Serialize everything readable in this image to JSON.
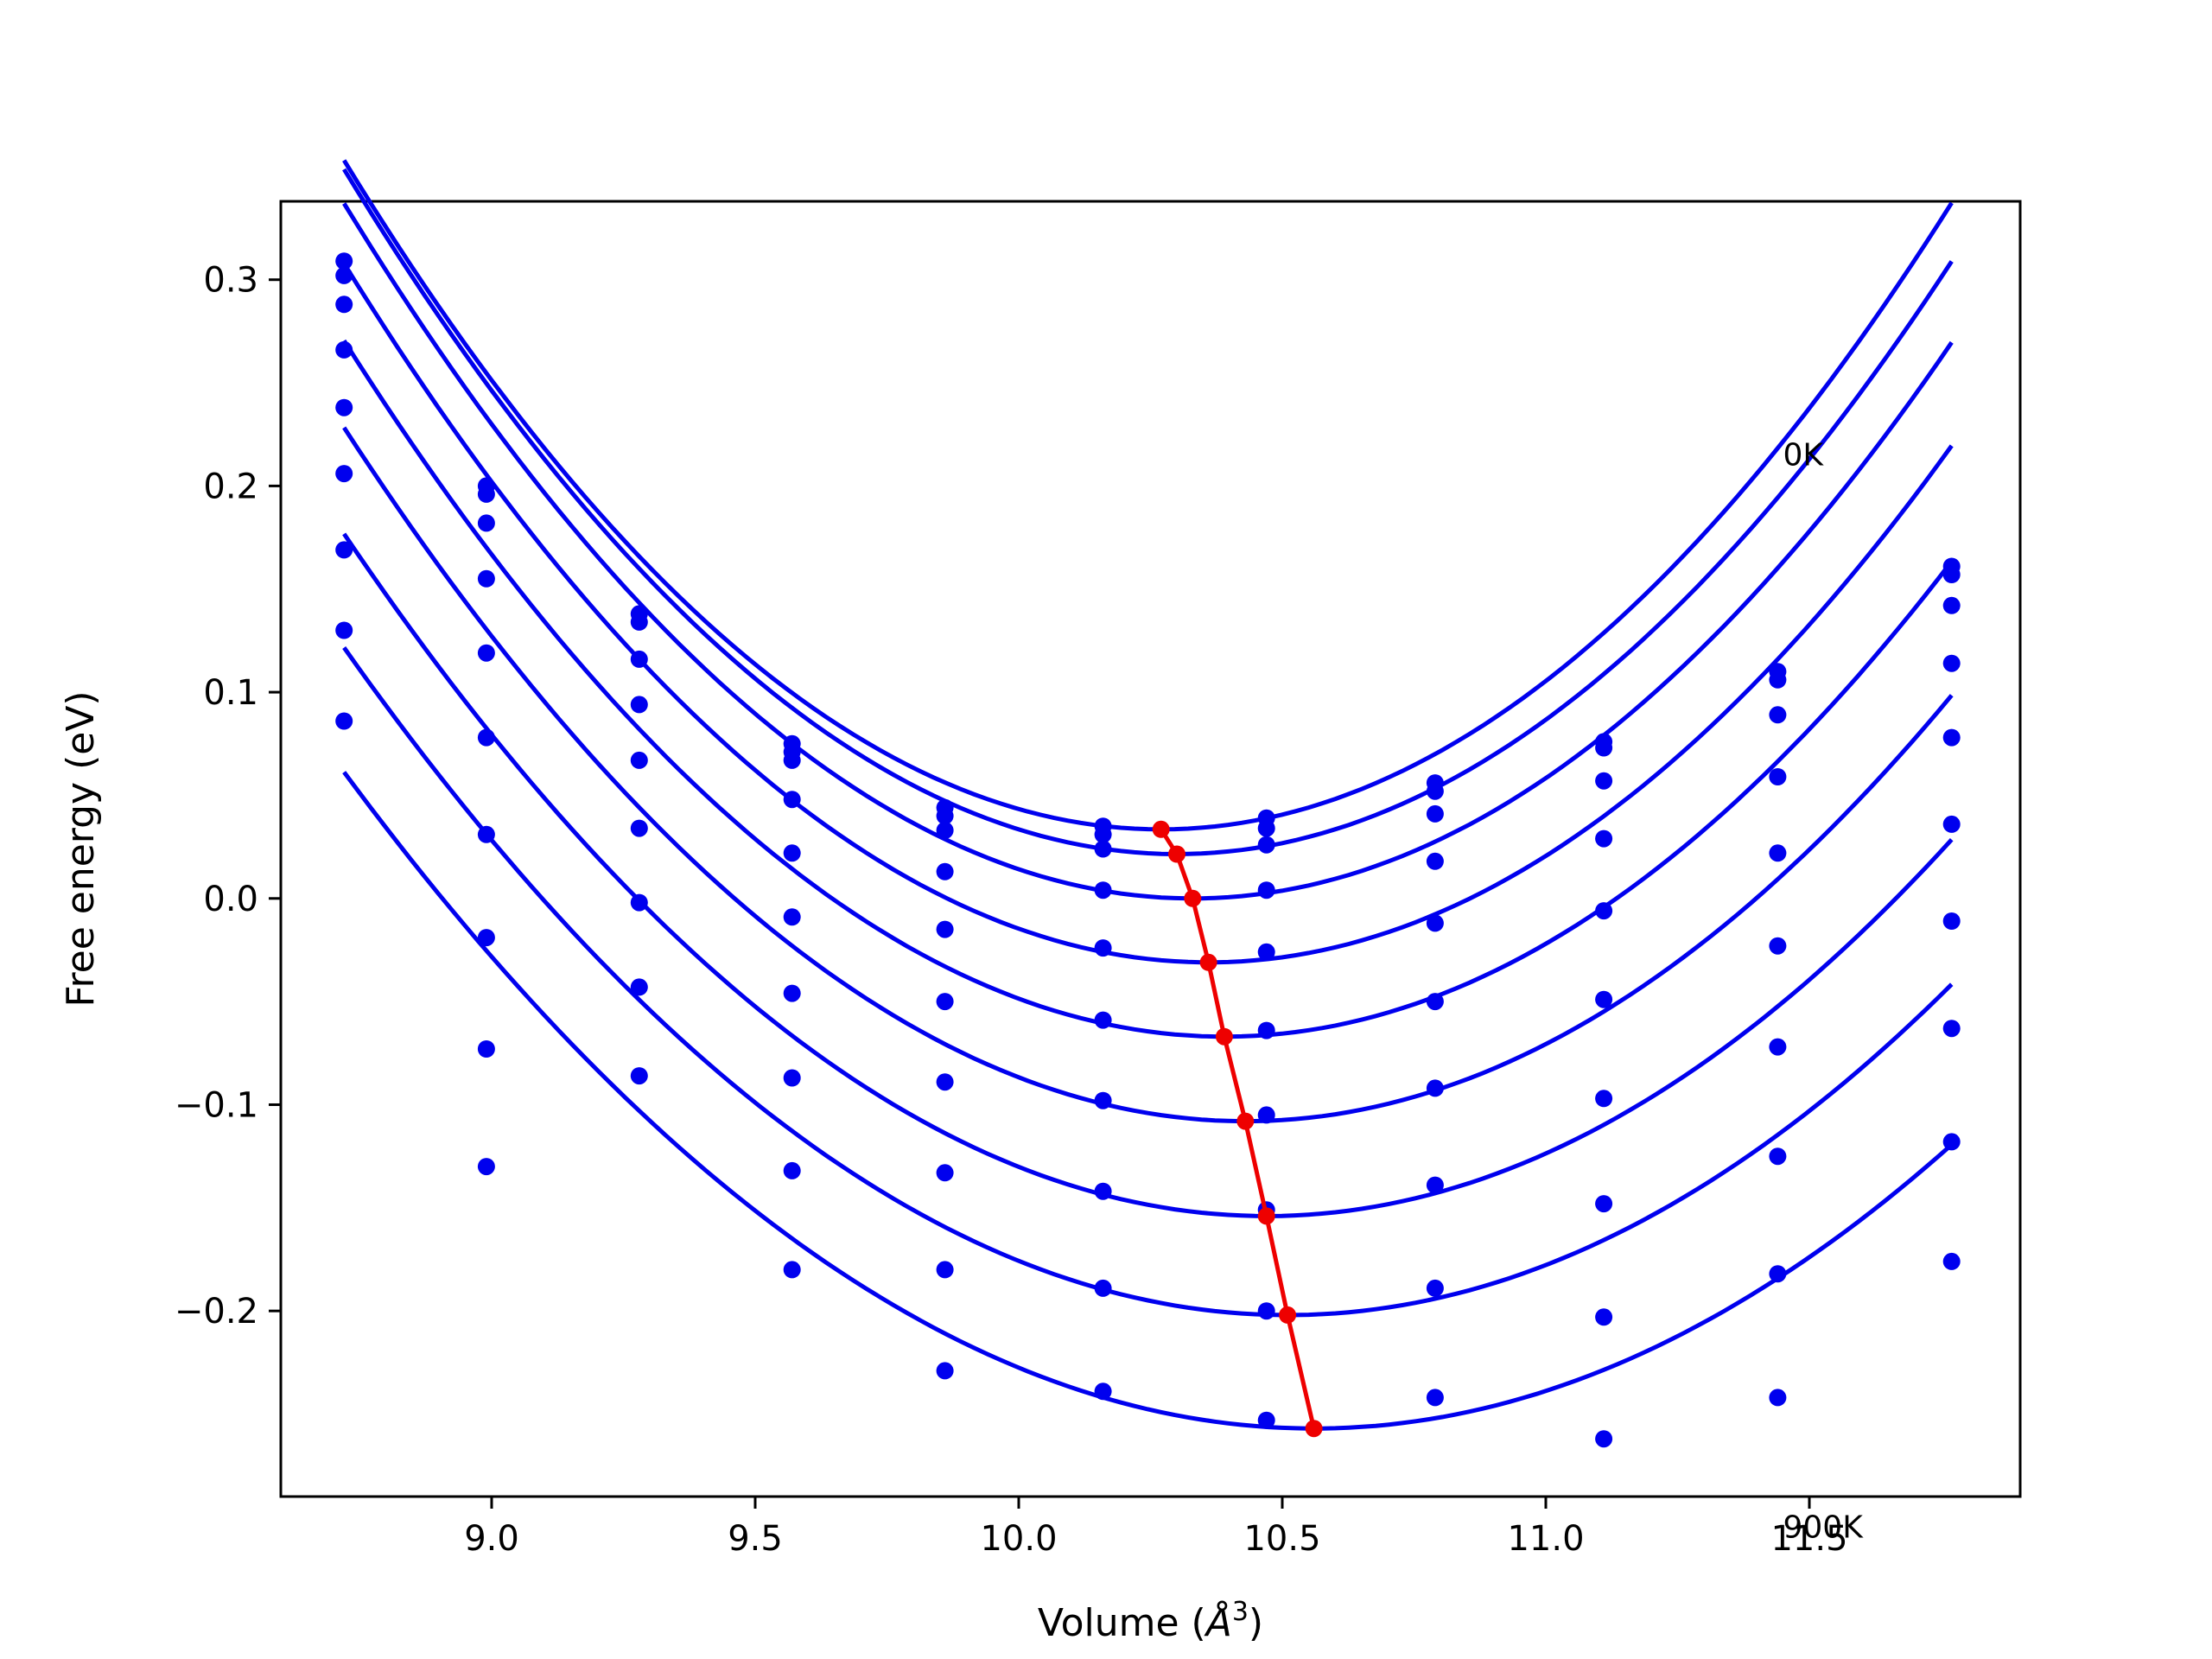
{
  "chart_data": {
    "type": "scatter",
    "xlabel": "Volume ($\\AA^3$)",
    "xlabel_text": "Volume (",
    "xlabel_unit": "Å",
    "xlabel_exp": "3",
    "xlabel_close": ")",
    "ylabel": "Free energy (eV)",
    "xlim": [
      8.6,
      11.9
    ],
    "ylim": [
      -0.29,
      0.338
    ],
    "xticks": [
      9.0,
      9.5,
      10.0,
      10.5,
      11.0,
      11.5
    ],
    "xtick_labels": [
      "9.0",
      "9.5",
      "10.0",
      "10.5",
      "11.0",
      "11.5"
    ],
    "yticks": [
      -0.2,
      -0.1,
      0.0,
      0.1,
      0.2,
      0.3
    ],
    "ytick_labels": [
      "−0.2",
      "−0.1",
      "0.0",
      "0.1",
      "0.2",
      "0.3"
    ],
    "annotations": [
      {
        "text": "0K",
        "x": 11.45,
        "y": 0.21
      },
      {
        "text": "900K",
        "x": 11.45,
        "y": -0.31
      }
    ],
    "volumes": [
      8.72,
      8.99,
      9.28,
      9.57,
      9.86,
      10.16,
      10.47,
      10.79,
      11.11,
      11.44,
      11.77
    ],
    "series": [
      {
        "values": [
          0.309,
          0.2,
          0.138,
          0.075,
          0.044,
          0.035,
          0.039,
          0.056,
          0.076,
          0.11,
          0.161
        ]
      },
      {
        "values": [
          0.302,
          0.196,
          0.134,
          0.071,
          0.04,
          0.031,
          0.034,
          0.052,
          0.073,
          0.106,
          0.157
        ]
      },
      {
        "values": [
          0.288,
          0.182,
          0.116,
          0.067,
          0.033,
          0.024,
          0.026,
          0.041,
          0.057,
          0.089,
          0.142
        ]
      },
      {
        "values": [
          0.266,
          0.155,
          0.094,
          0.048,
          0.013,
          0.004,
          0.004,
          0.018,
          0.029,
          0.059,
          0.114
        ]
      },
      {
        "values": [
          0.238,
          0.119,
          0.067,
          0.022,
          -0.015,
          -0.024,
          -0.026,
          -0.012,
          -0.006,
          0.022,
          0.078
        ]
      },
      {
        "values": [
          0.206,
          0.078,
          0.034,
          -0.009,
          -0.05,
          -0.059,
          -0.064,
          -0.05,
          -0.049,
          -0.023,
          0.036
        ]
      },
      {
        "values": [
          0.169,
          0.031,
          -0.002,
          -0.046,
          -0.089,
          -0.098,
          -0.105,
          -0.092,
          -0.097,
          -0.072,
          -0.011
        ]
      },
      {
        "values": [
          0.13,
          -0.019,
          -0.043,
          -0.087,
          -0.133,
          -0.142,
          -0.151,
          -0.139,
          -0.148,
          -0.125,
          -0.063
        ]
      },
      {
        "values": [
          0.086,
          -0.073,
          -0.086,
          -0.132,
          -0.18,
          -0.189,
          -0.2,
          -0.189,
          -0.203,
          -0.182,
          -0.118
        ]
      },
      {
        "values": [
          null,
          -0.13,
          null,
          -0.18,
          -0.229,
          -0.239,
          -0.253,
          -0.242,
          -0.262,
          -0.242,
          -0.176
        ]
      }
    ],
    "fits": [
      {
        "a": 0.135,
        "v0": 10.27,
        "emin": 0.0335
      },
      {
        "a": 0.133,
        "v0": 10.3,
        "emin": 0.0215
      },
      {
        "a": 0.13,
        "v0": 10.33,
        "emin": 0.0
      },
      {
        "a": 0.126,
        "v0": 10.36,
        "emin": -0.031
      },
      {
        "a": 0.121,
        "v0": 10.39,
        "emin": -0.067
      },
      {
        "a": 0.115,
        "v0": 10.43,
        "emin": -0.108
      },
      {
        "a": 0.108,
        "v0": 10.47,
        "emin": -0.154
      },
      {
        "a": 0.101,
        "v0": 10.51,
        "emin": -0.202
      },
      {
        "a": 0.094,
        "v0": 10.56,
        "emin": -0.257
      }
    ],
    "fit_range": [
      8.72,
      11.77
    ],
    "minima_line": {
      "x": [
        10.27,
        10.3,
        10.33,
        10.36,
        10.39,
        10.43,
        10.47,
        10.51,
        10.56
      ],
      "y": [
        0.0335,
        0.0215,
        0.0,
        -0.031,
        -0.067,
        -0.108,
        -0.154,
        -0.202,
        -0.257
      ]
    },
    "colors": {
      "points": "#0000ee",
      "fits": "#0000ee",
      "minima": "#ee0000",
      "axes": "#000000"
    }
  }
}
